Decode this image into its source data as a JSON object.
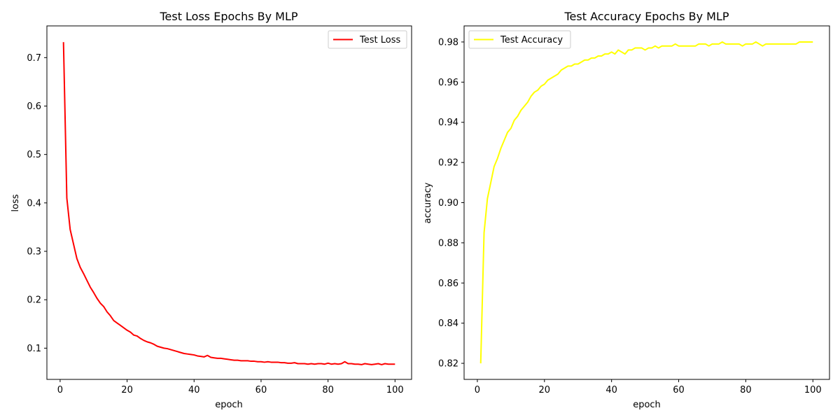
{
  "chart_data": [
    {
      "type": "line",
      "title": "Test Loss Epochs By MLP",
      "xlabel": "epoch",
      "ylabel": "loss",
      "xlim": [
        -3.95,
        104.95
      ],
      "ylim": [
        0.0355,
        0.7655
      ],
      "xticks": [
        0,
        20,
        40,
        60,
        80,
        100
      ],
      "yticks": [
        0.1,
        0.2,
        0.3,
        0.4,
        0.5,
        0.6,
        0.7
      ],
      "legend_position": "top-right",
      "series": [
        {
          "name": "Test Loss",
          "color": "#ff0000",
          "x": [
            1,
            2,
            3,
            4,
            5,
            6,
            7,
            8,
            9,
            10,
            11,
            12,
            13,
            14,
            15,
            16,
            17,
            18,
            19,
            20,
            21,
            22,
            23,
            24,
            25,
            26,
            27,
            28,
            29,
            30,
            31,
            32,
            33,
            34,
            35,
            36,
            37,
            38,
            39,
            40,
            41,
            42,
            43,
            44,
            45,
            46,
            47,
            48,
            49,
            50,
            51,
            52,
            53,
            54,
            55,
            56,
            57,
            58,
            59,
            60,
            61,
            62,
            63,
            64,
            65,
            66,
            67,
            68,
            69,
            70,
            71,
            72,
            73,
            74,
            75,
            76,
            77,
            78,
            79,
            80,
            81,
            82,
            83,
            84,
            85,
            86,
            87,
            88,
            89,
            90,
            91,
            92,
            93,
            94,
            95,
            96,
            97,
            98,
            99,
            100
          ],
          "values": [
            0.732,
            0.41,
            0.345,
            0.315,
            0.285,
            0.267,
            0.254,
            0.24,
            0.226,
            0.215,
            0.203,
            0.193,
            0.186,
            0.175,
            0.167,
            0.157,
            0.152,
            0.147,
            0.142,
            0.137,
            0.133,
            0.127,
            0.125,
            0.12,
            0.116,
            0.113,
            0.111,
            0.108,
            0.104,
            0.102,
            0.1,
            0.099,
            0.097,
            0.095,
            0.093,
            0.091,
            0.089,
            0.088,
            0.087,
            0.086,
            0.084,
            0.083,
            0.082,
            0.085,
            0.081,
            0.08,
            0.079,
            0.079,
            0.078,
            0.077,
            0.076,
            0.075,
            0.075,
            0.074,
            0.074,
            0.074,
            0.073,
            0.073,
            0.072,
            0.072,
            0.071,
            0.072,
            0.071,
            0.071,
            0.071,
            0.07,
            0.07,
            0.069,
            0.069,
            0.07,
            0.068,
            0.068,
            0.068,
            0.067,
            0.068,
            0.067,
            0.068,
            0.068,
            0.067,
            0.069,
            0.067,
            0.068,
            0.067,
            0.068,
            0.072,
            0.068,
            0.068,
            0.067,
            0.067,
            0.066,
            0.068,
            0.067,
            0.066,
            0.067,
            0.068,
            0.066,
            0.068,
            0.067,
            0.067,
            0.067
          ]
        }
      ]
    },
    {
      "type": "line",
      "title": "Test Accuracy Epochs By MLP",
      "xlabel": "epoch",
      "ylabel": "accuracy",
      "xlim": [
        -3.95,
        104.95
      ],
      "ylim": [
        0.812,
        0.988
      ],
      "xticks": [
        0,
        20,
        40,
        60,
        80,
        100
      ],
      "yticks": [
        0.82,
        0.84,
        0.86,
        0.88,
        0.9,
        0.92,
        0.94,
        0.96,
        0.98
      ],
      "legend_position": "top-left",
      "series": [
        {
          "name": "Test Accuracy",
          "color": "#ffff00",
          "x": [
            1,
            2,
            3,
            4,
            5,
            6,
            7,
            8,
            9,
            10,
            11,
            12,
            13,
            14,
            15,
            16,
            17,
            18,
            19,
            20,
            21,
            22,
            23,
            24,
            25,
            26,
            27,
            28,
            29,
            30,
            31,
            32,
            33,
            34,
            35,
            36,
            37,
            38,
            39,
            40,
            41,
            42,
            43,
            44,
            45,
            46,
            47,
            48,
            49,
            50,
            51,
            52,
            53,
            54,
            55,
            56,
            57,
            58,
            59,
            60,
            61,
            62,
            63,
            64,
            65,
            66,
            67,
            68,
            69,
            70,
            71,
            72,
            73,
            74,
            75,
            76,
            77,
            78,
            79,
            80,
            81,
            82,
            83,
            84,
            85,
            86,
            87,
            88,
            89,
            90,
            91,
            92,
            93,
            94,
            95,
            96,
            97,
            98,
            99,
            100
          ],
          "values": [
            0.82,
            0.885,
            0.902,
            0.91,
            0.918,
            0.922,
            0.927,
            0.931,
            0.935,
            0.937,
            0.941,
            0.943,
            0.946,
            0.948,
            0.95,
            0.953,
            0.955,
            0.956,
            0.958,
            0.959,
            0.961,
            0.962,
            0.963,
            0.964,
            0.966,
            0.967,
            0.968,
            0.968,
            0.969,
            0.969,
            0.97,
            0.971,
            0.971,
            0.972,
            0.972,
            0.973,
            0.973,
            0.974,
            0.974,
            0.975,
            0.974,
            0.976,
            0.975,
            0.974,
            0.976,
            0.976,
            0.977,
            0.977,
            0.977,
            0.976,
            0.977,
            0.977,
            0.978,
            0.977,
            0.978,
            0.978,
            0.978,
            0.978,
            0.979,
            0.978,
            0.978,
            0.978,
            0.978,
            0.978,
            0.978,
            0.979,
            0.979,
            0.979,
            0.978,
            0.979,
            0.979,
            0.979,
            0.98,
            0.979,
            0.979,
            0.979,
            0.979,
            0.979,
            0.978,
            0.979,
            0.979,
            0.979,
            0.98,
            0.979,
            0.978,
            0.979,
            0.979,
            0.979,
            0.979,
            0.979,
            0.979,
            0.979,
            0.979,
            0.979,
            0.979,
            0.98,
            0.98,
            0.98,
            0.98,
            0.98
          ]
        }
      ]
    }
  ]
}
